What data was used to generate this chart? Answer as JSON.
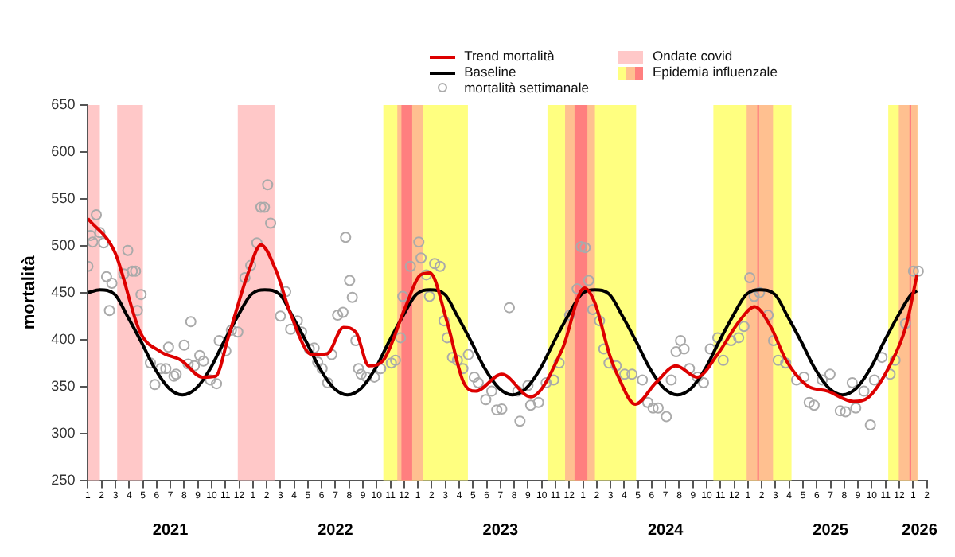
{
  "chart_data": {
    "type": "line",
    "ylabel": "mortalità",
    "xlim": [
      "2021-01-01",
      "2026-02-01"
    ],
    "x2lim": [
      "2021-01-01",
      "2026-02-01"
    ],
    "ylim": [
      250,
      650
    ],
    "yticks": [
      250,
      300,
      350,
      400,
      450,
      500,
      550,
      600,
      650
    ],
    "xticks": [
      {
        "value": "2021-01-01",
        "label": "1"
      },
      {
        "value": "2021-02-01",
        "label": "2"
      },
      {
        "value": "2021-03-01",
        "label": "3"
      },
      {
        "value": "2021-04-01",
        "label": "4"
      },
      {
        "value": "2021-05-01",
        "label": "5"
      },
      {
        "value": "2021-06-01",
        "label": "6"
      },
      {
        "value": "2021-07-01",
        "label": "7"
      },
      {
        "value": "2021-08-01",
        "label": "8"
      },
      {
        "value": "2021-09-01",
        "label": "9"
      },
      {
        "value": "2021-10-01",
        "label": "10"
      },
      {
        "value": "2021-11-01",
        "label": "11"
      },
      {
        "value": "2021-12-01",
        "label": "12"
      },
      {
        "value": "2022-01-01",
        "label": "1"
      },
      {
        "value": "2022-02-01",
        "label": "2"
      },
      {
        "value": "2022-03-01",
        "label": "3"
      },
      {
        "value": "2022-04-01",
        "label": "4"
      },
      {
        "value": "2022-05-01",
        "label": "5"
      },
      {
        "value": "2022-06-01",
        "label": "6"
      },
      {
        "value": "2022-07-01",
        "label": "7"
      },
      {
        "value": "2022-08-01",
        "label": "8"
      },
      {
        "value": "2022-09-01",
        "label": "9"
      },
      {
        "value": "2022-10-01",
        "label": "10"
      },
      {
        "value": "2022-11-01",
        "label": "11"
      },
      {
        "value": "2022-12-01",
        "label": "12"
      },
      {
        "value": "2023-01-01",
        "label": "1"
      },
      {
        "value": "2023-02-01",
        "label": "2"
      },
      {
        "value": "2023-03-01",
        "label": "3"
      },
      {
        "value": "2023-04-01",
        "label": "4"
      },
      {
        "value": "2023-05-01",
        "label": "5"
      },
      {
        "value": "2023-06-01",
        "label": "6"
      },
      {
        "value": "2023-07-01",
        "label": "7"
      },
      {
        "value": "2023-08-01",
        "label": "8"
      },
      {
        "value": "2023-09-01",
        "label": "9"
      },
      {
        "value": "2023-10-01",
        "label": "10"
      },
      {
        "value": "2023-11-01",
        "label": "11"
      },
      {
        "value": "2023-12-01",
        "label": "12"
      },
      {
        "value": "2024-01-01",
        "label": "1"
      },
      {
        "value": "2024-02-01",
        "label": "2"
      },
      {
        "value": "2024-03-01",
        "label": "3"
      },
      {
        "value": "2024-04-01",
        "label": "4"
      },
      {
        "value": "2024-05-01",
        "label": "5"
      },
      {
        "value": "2024-06-01",
        "label": "6"
      },
      {
        "value": "2024-07-01",
        "label": "7"
      },
      {
        "value": "2024-08-01",
        "label": "8"
      },
      {
        "value": "2024-09-01",
        "label": "9"
      },
      {
        "value": "2024-10-01",
        "label": "10"
      },
      {
        "value": "2024-11-01",
        "label": "11"
      },
      {
        "value": "2024-12-01",
        "label": "12"
      },
      {
        "value": "2025-01-01",
        "label": "1"
      },
      {
        "value": "2025-02-01",
        "label": "2"
      },
      {
        "value": "2025-03-01",
        "label": "3"
      },
      {
        "value": "2025-04-01",
        "label": "4"
      },
      {
        "value": "2025-05-01",
        "label": "5"
      },
      {
        "value": "2025-06-01",
        "label": "6"
      },
      {
        "value": "2025-07-01",
        "label": "7"
      },
      {
        "value": "2025-08-01",
        "label": "8"
      },
      {
        "value": "2025-09-01",
        "label": "9"
      },
      {
        "value": "2025-10-01",
        "label": "10"
      },
      {
        "value": "2025-11-01",
        "label": "11"
      },
      {
        "value": "2025-12-01",
        "label": "12"
      },
      {
        "value": "2026-01-01",
        "label": "1"
      },
      {
        "value": "2026-02-01",
        "label": "2"
      }
    ],
    "x2ticks": [
      {
        "value": "2021-07-01",
        "label": "2021"
      },
      {
        "value": "2022-07-01",
        "label": "2022"
      },
      {
        "value": "2023-07-01",
        "label": "2023"
      },
      {
        "value": "2024-07-01",
        "label": "2024"
      },
      {
        "value": "2025-07-01",
        "label": "2025"
      },
      {
        "value": "2026-01-16",
        "label": "2026"
      }
    ],
    "legend": "top",
    "bands": [
      {
        "axis": "x",
        "from": "2021-01-01",
        "to": "2021-01-28",
        "color": "#ffc8c8"
      },
      {
        "axis": "x",
        "from": "2021-03-05",
        "to": "2021-05-01",
        "color": "#ffc8c8"
      },
      {
        "axis": "x",
        "from": "2021-11-28",
        "to": "2022-02-17",
        "label": "Ondate covid",
        "color": "#ffc8c8"
      },
      {
        "axis": "x",
        "from": "2022-10-16",
        "to": "2023-04-20",
        "color": "#ffff80"
      },
      {
        "axis": "x",
        "from": "2022-11-16",
        "to": "2023-01-13",
        "color": "#ffc090"
      },
      {
        "axis": "x",
        "from": "2022-11-25",
        "to": "2022-12-19",
        "color": "#ff7f7f"
      },
      {
        "axis": "x",
        "from": "2023-10-14",
        "to": "2024-04-27",
        "color": "#ffff80"
      },
      {
        "axis": "x",
        "from": "2023-11-22",
        "to": "2024-01-28",
        "color": "#ffc090"
      },
      {
        "axis": "x",
        "from": "2023-12-13",
        "to": "2024-01-11",
        "color": "#ff7f7f"
      },
      {
        "axis": "x",
        "from": "2024-10-16",
        "to": "2025-04-06",
        "color": "#ffff80"
      },
      {
        "axis": "x",
        "from": "2024-12-29",
        "to": "2025-02-24",
        "color": "#ffc090"
      },
      {
        "axis": "x",
        "from": "2025-01-22",
        "to": "2025-01-26",
        "color": "#ff7f7f"
      },
      {
        "axis": "x",
        "from": "2025-11-07",
        "to": "2026-01-11",
        "color": "#ffff80"
      },
      {
        "axis": "x",
        "from": "2025-11-30",
        "to": "2026-01-11",
        "color": "#ffc090"
      },
      {
        "axis": "x",
        "from": "2025-12-24",
        "to": "2025-12-28",
        "label": "Epidemia influenzale",
        "color": "#ff7f7f"
      }
    ],
    "series": [
      {
        "name": "Trend mortalità",
        "color": "#dd0000",
        "marker": "none",
        "x": [
          "2021-01-01",
          "2021-02-28",
          "2021-04-25",
          "2021-06-10",
          "2021-07-25",
          "2021-09-11",
          "2021-10-10",
          "2021-11-07",
          "2021-12-22",
          "2022-01-19",
          "2022-02-19",
          "2022-03-25",
          "2022-05-10",
          "2022-06-13",
          "2022-07-19",
          "2022-08-16",
          "2022-09-14",
          "2022-10-16",
          "2022-12-04",
          "2023-01-07",
          "2023-01-28",
          "2023-03-04",
          "2023-04-10",
          "2023-05-07",
          "2023-07-04",
          "2023-09-07",
          "2023-11-16",
          "2024-01-04",
          "2024-01-28",
          "2024-02-28",
          "2024-03-19",
          "2024-04-25",
          "2024-06-10",
          "2024-07-25",
          "2024-09-10",
          "2024-10-25",
          "2024-12-13",
          "2025-01-16",
          "2025-02-19",
          "2025-03-25",
          "2025-05-10",
          "2025-06-25",
          "2025-08-22",
          "2025-09-25",
          "2025-11-10",
          "2025-12-16",
          "2026-01-10"
        ],
        "values": [
          529,
          493,
          408,
          387,
          378,
          360,
          361,
          402,
          472,
          501,
          475,
          426,
          384,
          385,
          413,
          408,
          372,
          378,
          435,
          469,
          471,
          420,
          355,
          345,
          363,
          339,
          390,
          455,
          439,
          384,
          360,
          331,
          354,
          372,
          360,
          384,
          420,
          435,
          414,
          378,
          351,
          345,
          334,
          339,
          372,
          414,
          469
        ]
      },
      {
        "name": "Baseline",
        "color": "#000000",
        "marker": "none",
        "x": [
          "2021-01-01",
          "2021-01-28",
          "2021-02-28",
          "2021-03-28",
          "2021-04-28",
          "2021-05-28",
          "2021-06-28",
          "2021-07-28",
          "2021-08-28",
          "2021-09-28",
          "2021-10-28",
          "2021-11-28",
          "2021-12-28",
          "2022-01-28",
          "2022-02-28",
          "2022-03-28",
          "2022-04-28",
          "2022-05-28",
          "2022-06-28",
          "2022-07-28",
          "2022-08-28",
          "2022-09-28",
          "2022-10-28",
          "2022-11-28",
          "2022-12-28",
          "2023-01-28",
          "2023-02-28",
          "2023-03-28",
          "2023-04-28",
          "2023-05-28",
          "2023-06-28",
          "2023-07-28",
          "2023-08-28",
          "2023-09-28",
          "2023-10-28",
          "2023-11-28",
          "2023-12-28",
          "2024-01-28",
          "2024-02-28",
          "2024-03-28",
          "2024-04-28",
          "2024-05-28",
          "2024-06-28",
          "2024-07-28",
          "2024-08-28",
          "2024-09-28",
          "2024-10-28",
          "2024-11-28",
          "2024-12-28",
          "2025-01-28",
          "2025-02-28",
          "2025-03-28",
          "2025-04-28",
          "2025-05-28",
          "2025-06-28",
          "2025-07-28",
          "2025-08-28",
          "2025-09-28",
          "2025-10-28",
          "2025-11-28",
          "2025-12-28",
          "2026-01-10"
        ],
        "values": [
          450,
          453,
          448,
          425,
          397,
          369,
          348,
          341,
          348,
          369,
          397,
          425,
          448,
          453,
          448,
          425,
          397,
          369,
          348,
          341,
          348,
          369,
          397,
          425,
          448,
          453,
          448,
          425,
          397,
          369,
          348,
          341,
          348,
          369,
          397,
          425,
          448,
          453,
          448,
          425,
          397,
          369,
          348,
          341,
          348,
          369,
          397,
          425,
          448,
          453,
          448,
          425,
          397,
          369,
          348,
          341,
          348,
          369,
          397,
          425,
          448,
          452
        ]
      },
      {
        "name": "mortalità settimanale",
        "type": "scatter",
        "color": "#aaaaaa",
        "marker": "circle",
        "x": [
          "2021-01-01",
          "2021-01-07",
          "2021-01-12",
          "2021-01-20",
          "2021-01-28",
          "2021-02-05",
          "2021-02-11",
          "2021-02-17",
          "2021-02-22",
          "2021-03-20",
          "2021-03-29",
          "2021-04-08",
          "2021-04-15",
          "2021-04-19",
          "2021-04-27",
          "2021-05-18",
          "2021-05-28",
          "2021-06-10",
          "2021-06-21",
          "2021-06-27",
          "2021-07-09",
          "2021-07-14",
          "2021-08-01",
          "2021-08-10",
          "2021-08-16",
          "2021-08-24",
          "2021-09-05",
          "2021-09-13",
          "2021-09-28",
          "2021-10-12",
          "2021-10-18",
          "2021-11-02",
          "2021-11-14",
          "2021-11-28",
          "2021-12-14",
          "2021-12-27",
          "2022-01-10",
          "2022-01-19",
          "2022-01-27",
          "2022-02-03",
          "2022-02-09",
          "2022-03-01",
          "2022-03-13",
          "2022-03-24",
          "2022-04-08",
          "2022-04-17",
          "2022-05-04",
          "2022-05-15",
          "2022-05-23",
          "2022-06-02",
          "2022-06-14",
          "2022-06-23",
          "2022-07-06",
          "2022-07-18",
          "2022-07-24",
          "2022-08-02",
          "2022-08-08",
          "2022-08-16",
          "2022-08-22",
          "2022-08-28",
          "2022-09-09",
          "2022-09-26",
          "2022-10-10",
          "2022-11-03",
          "2022-11-12",
          "2022-11-23",
          "2022-11-28",
          "2022-12-15",
          "2023-01-03",
          "2023-01-08",
          "2023-01-20",
          "2023-01-27",
          "2023-02-07",
          "2023-02-18",
          "2023-02-26",
          "2023-03-05",
          "2023-03-17",
          "2023-03-28",
          "2023-04-09",
          "2023-04-21",
          "2023-05-04",
          "2023-05-13",
          "2023-05-30",
          "2023-06-12",
          "2023-06-23",
          "2023-07-04",
          "2023-07-21",
          "2023-08-09",
          "2023-08-14",
          "2023-09-01",
          "2023-09-07",
          "2023-09-24",
          "2023-10-11",
          "2023-10-28",
          "2023-11-09",
          "2023-12-02",
          "2023-12-19",
          "2023-12-28",
          "2024-01-06",
          "2024-01-14",
          "2024-01-23",
          "2024-02-07",
          "2024-02-16",
          "2024-02-27",
          "2024-03-14",
          "2024-04-02",
          "2024-04-18",
          "2024-05-11",
          "2024-05-23",
          "2024-06-04",
          "2024-06-15",
          "2024-07-03",
          "2024-07-14",
          "2024-07-25",
          "2024-08-04",
          "2024-08-12",
          "2024-08-24",
          "2024-09-11",
          "2024-09-24",
          "2024-10-09",
          "2024-10-26",
          "2024-11-07",
          "2024-11-24",
          "2024-12-11",
          "2024-12-23",
          "2025-01-05",
          "2025-01-15",
          "2025-01-27",
          "2025-02-14",
          "2025-02-25",
          "2025-03-07",
          "2025-03-24",
          "2025-04-17",
          "2025-05-03",
          "2025-05-15",
          "2025-05-26",
          "2025-06-13",
          "2025-06-30",
          "2025-07-23",
          "2025-08-04",
          "2025-08-19",
          "2025-08-27",
          "2025-09-14",
          "2025-09-28",
          "2025-10-07",
          "2025-10-24",
          "2025-11-11",
          "2025-11-22",
          "2025-12-15",
          "2026-01-02",
          "2026-01-13"
        ],
        "values": [
          478,
          511,
          504,
          533,
          514,
          503,
          467,
          431,
          460,
          470,
          495,
          473,
          473,
          431,
          448,
          375,
          352,
          369,
          369,
          392,
          361,
          363,
          394,
          374,
          419,
          372,
          383,
          377,
          357,
          353,
          399,
          388,
          410,
          408,
          466,
          479,
          503,
          541,
          541,
          565,
          524,
          425,
          451,
          411,
          420,
          408,
          390,
          391,
          376,
          369,
          354,
          384,
          426,
          429,
          509,
          463,
          445,
          399,
          369,
          363,
          360,
          360,
          369,
          375,
          378,
          402,
          446,
          478,
          504,
          487,
          469,
          446,
          481,
          478,
          420,
          402,
          381,
          378,
          369,
          384,
          360,
          354,
          336,
          345,
          325,
          326,
          434,
          345,
          313,
          351,
          330,
          333,
          354,
          357,
          375,
          426,
          454,
          499,
          498,
          463,
          432,
          420,
          390,
          375,
          372,
          363,
          363,
          357,
          333,
          327,
          327,
          318,
          357,
          387,
          399,
          390,
          369,
          360,
          354,
          390,
          402,
          378,
          399,
          402,
          414,
          466,
          446,
          450,
          426,
          399,
          378,
          375,
          357,
          360,
          333,
          330,
          357,
          363,
          324,
          323,
          354,
          327,
          345,
          309,
          357,
          381,
          363,
          378,
          417,
          473,
          473
        ]
      }
    ]
  }
}
